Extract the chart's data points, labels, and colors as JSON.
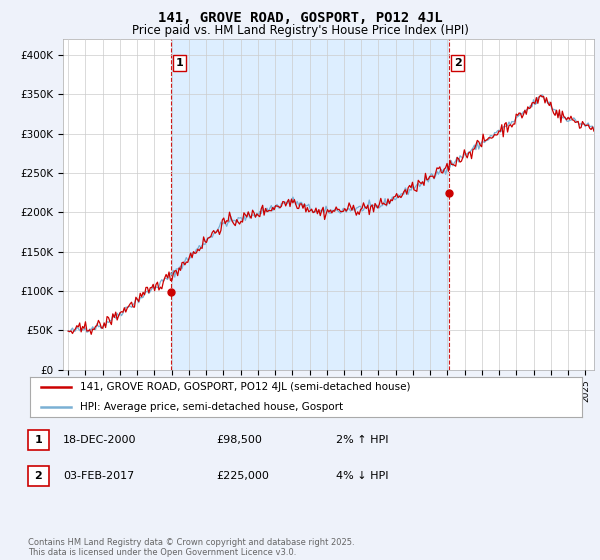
{
  "title": "141, GROVE ROAD, GOSPORT, PO12 4JL",
  "subtitle": "Price paid vs. HM Land Registry's House Price Index (HPI)",
  "title_fontsize": 10,
  "subtitle_fontsize": 8.5,
  "ylabel_ticks": [
    "£0",
    "£50K",
    "£100K",
    "£150K",
    "£200K",
    "£250K",
    "£300K",
    "£350K",
    "£400K"
  ],
  "ytick_values": [
    0,
    50000,
    100000,
    150000,
    200000,
    250000,
    300000,
    350000,
    400000
  ],
  "ylim": [
    0,
    420000
  ],
  "xlim_start": 1994.7,
  "xlim_end": 2025.5,
  "hpi_color": "#7ab0d4",
  "price_color": "#cc0000",
  "shade_color": "#ddeeff",
  "marker1_x": 2000.96,
  "marker1_y": 98500,
  "marker2_x": 2017.09,
  "marker2_y": 225000,
  "legend_label1": "141, GROVE ROAD, GOSPORT, PO12 4JL (semi-detached house)",
  "legend_label2": "HPI: Average price, semi-detached house, Gosport",
  "table_row1": [
    "1",
    "18-DEC-2000",
    "£98,500",
    "2% ↑ HPI"
  ],
  "table_row2": [
    "2",
    "03-FEB-2017",
    "£225,000",
    "4% ↓ HPI"
  ],
  "footer": "Contains HM Land Registry data © Crown copyright and database right 2025.\nThis data is licensed under the Open Government Licence v3.0.",
  "bg_color": "#eef2fa",
  "plot_bg_color": "#ffffff",
  "grid_color": "#cccccc"
}
